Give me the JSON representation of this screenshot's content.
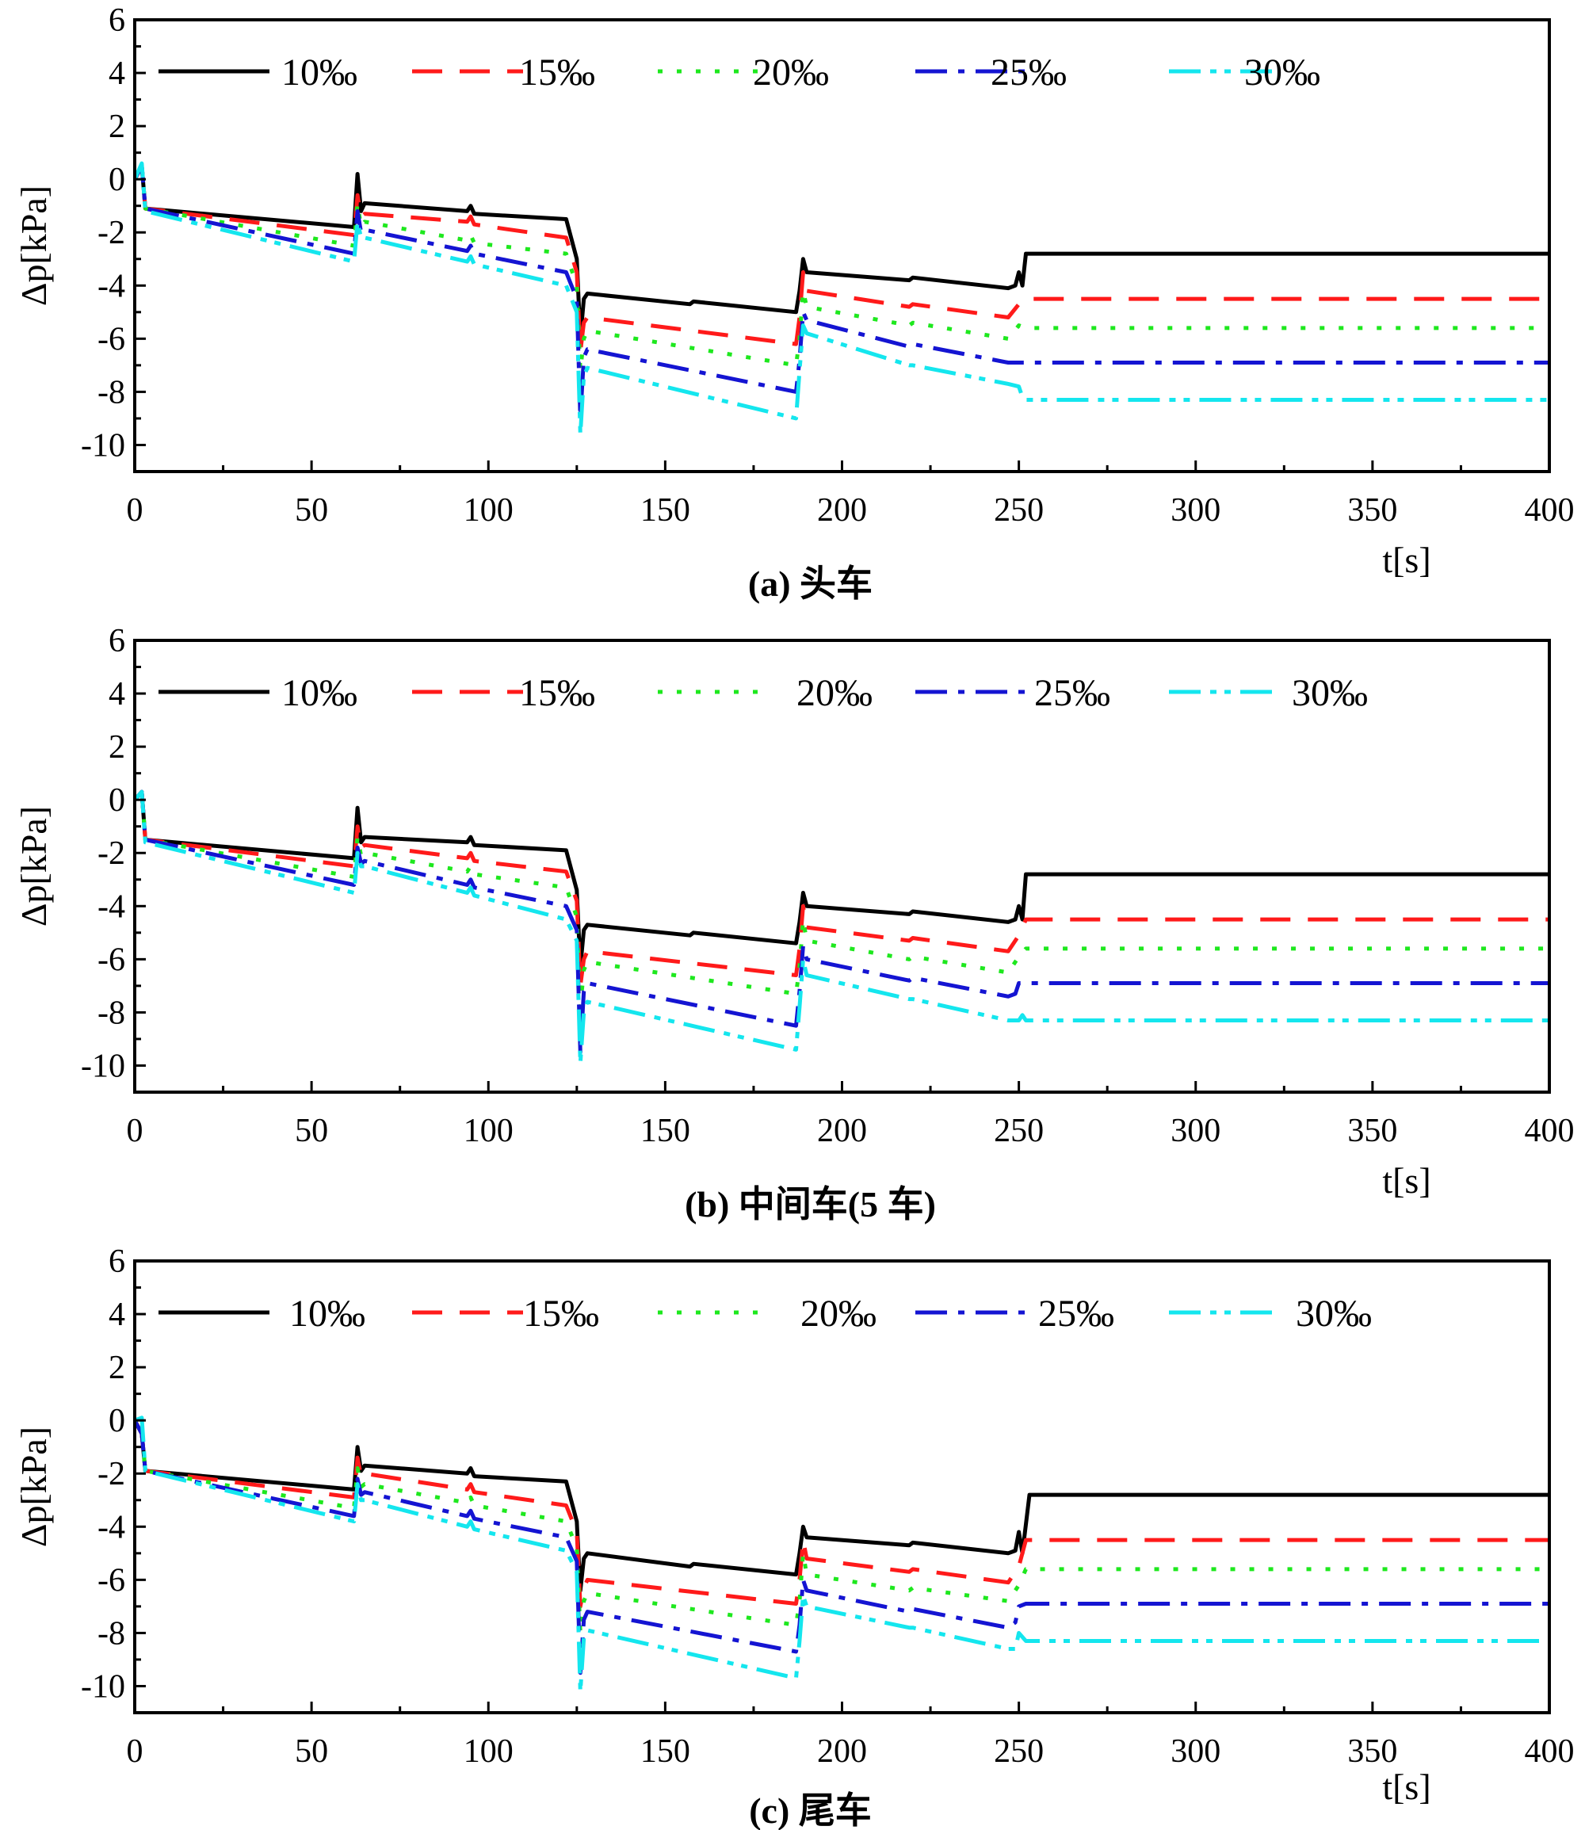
{
  "figure": {
    "captions": [
      "(a)  头车",
      "(b)  中间车(5 车)",
      "(c)  尾车"
    ]
  },
  "colors": {
    "s10": "#000000",
    "s15": "#ff1a1a",
    "s20": "#1ee81e",
    "s25": "#1414d2",
    "s30": "#14e6ee"
  },
  "chart_data": [
    {
      "type": "line",
      "title": "(a)  头车",
      "xlabel": "t[s]",
      "ylabel": "Δp[kPa]",
      "xlim": [
        0,
        400
      ],
      "ylim": [
        -11,
        6
      ],
      "xticks": [
        0,
        50,
        100,
        150,
        200,
        250,
        300,
        350,
        400
      ],
      "yticks": [
        6,
        4,
        2,
        0,
        -2,
        -4,
        -6,
        -8,
        -10
      ],
      "legend": [
        "10‰",
        "15‰",
        "20‰",
        "25‰",
        "30‰"
      ],
      "series": [
        {
          "name": "10‰",
          "x": [
            0,
            2,
            3,
            62,
            63,
            64,
            65,
            94,
            95,
            96,
            122,
            125,
            126,
            127,
            128,
            157,
            158,
            187,
            188,
            189,
            190,
            219,
            220,
            247,
            249,
            250,
            251,
            252,
            400
          ],
          "y": [
            0,
            0.5,
            -1.1,
            -1.8,
            0.2,
            -1.2,
            -0.9,
            -1.2,
            -1.0,
            -1.3,
            -1.5,
            -3.0,
            -6.0,
            -4.5,
            -4.3,
            -4.7,
            -4.6,
            -5.0,
            -4.2,
            -3.0,
            -3.5,
            -3.8,
            -3.7,
            -4.1,
            -4.0,
            -3.5,
            -4.0,
            -2.8,
            -2.8
          ]
        },
        {
          "name": "15‰",
          "x": [
            0,
            2,
            3,
            62,
            63,
            64,
            65,
            94,
            95,
            96,
            122,
            125,
            126,
            127,
            128,
            187,
            188,
            189,
            190,
            219,
            220,
            247,
            250,
            252,
            400
          ],
          "y": [
            0,
            0.5,
            -1.1,
            -2.1,
            -0.6,
            -1.4,
            -1.3,
            -1.6,
            -1.4,
            -1.7,
            -2.2,
            -3.5,
            -6.5,
            -5.4,
            -5.2,
            -6.2,
            -5.2,
            -3.5,
            -4.2,
            -4.8,
            -4.7,
            -5.2,
            -4.7,
            -4.5,
            -4.5
          ]
        },
        {
          "name": "20‰",
          "x": [
            0,
            2,
            3,
            62,
            63,
            64,
            65,
            94,
            95,
            96,
            122,
            125,
            126,
            127,
            128,
            187,
            188,
            189,
            190,
            219,
            220,
            247,
            250,
            252,
            400
          ],
          "y": [
            0,
            0.5,
            -1.1,
            -2.5,
            -0.9,
            -1.8,
            -1.6,
            -2.3,
            -2.1,
            -2.4,
            -2.8,
            -4.0,
            -7.2,
            -6.0,
            -5.7,
            -7.0,
            -6.0,
            -4.2,
            -4.8,
            -5.5,
            -5.4,
            -6.0,
            -5.5,
            -5.6,
            -5.6
          ]
        },
        {
          "name": "25‰",
          "x": [
            0,
            2,
            3,
            62,
            63,
            64,
            65,
            94,
            95,
            96,
            122,
            125,
            126,
            127,
            128,
            187,
            188,
            189,
            190,
            219,
            220,
            247,
            250,
            252,
            400
          ],
          "y": [
            0,
            0.5,
            -1.1,
            -2.8,
            -1.2,
            -2.0,
            -1.9,
            -2.7,
            -2.5,
            -2.8,
            -3.5,
            -4.5,
            -9.0,
            -6.7,
            -6.4,
            -8.0,
            -6.8,
            -5.0,
            -5.3,
            -6.3,
            -6.2,
            -6.9,
            -6.9,
            -6.9,
            -6.9
          ]
        },
        {
          "name": "30‰",
          "x": [
            0,
            2,
            3,
            62,
            63,
            64,
            65,
            94,
            95,
            96,
            122,
            125,
            126,
            127,
            128,
            187,
            188,
            189,
            190,
            219,
            220,
            247,
            250,
            251,
            252,
            400
          ],
          "y": [
            0,
            0.6,
            -1.2,
            -3.1,
            -1.6,
            -2.2,
            -2.2,
            -3.1,
            -2.9,
            -3.2,
            -4.0,
            -5.0,
            -9.6,
            -7.4,
            -7.1,
            -9.0,
            -7.2,
            -5.5,
            -5.8,
            -7.0,
            -7.0,
            -7.7,
            -7.8,
            -8.2,
            -8.3,
            -8.3
          ]
        }
      ]
    },
    {
      "type": "line",
      "title": "(b)  中间车(5 车)",
      "xlabel": "t[s]",
      "ylabel": "Δp[kPa]",
      "xlim": [
        0,
        400
      ],
      "ylim": [
        -11,
        6
      ],
      "xticks": [
        0,
        50,
        100,
        150,
        200,
        250,
        300,
        350,
        400
      ],
      "yticks": [
        6,
        4,
        2,
        0,
        -2,
        -4,
        -6,
        -8,
        -10
      ],
      "legend": [
        "10‰",
        "15‰",
        "20‰",
        "25‰",
        "30‰"
      ],
      "series": [
        {
          "name": "10‰",
          "x": [
            0,
            2,
            3,
            62,
            63,
            64,
            65,
            94,
            95,
            96,
            122,
            125,
            126,
            127,
            128,
            157,
            158,
            187,
            188,
            189,
            190,
            219,
            220,
            247,
            249,
            250,
            251,
            252,
            400
          ],
          "y": [
            0,
            0.3,
            -1.5,
            -2.2,
            -0.3,
            -1.6,
            -1.4,
            -1.6,
            -1.4,
            -1.7,
            -1.9,
            -3.4,
            -6.3,
            -4.9,
            -4.7,
            -5.1,
            -5.0,
            -5.4,
            -4.6,
            -3.5,
            -4.0,
            -4.3,
            -4.2,
            -4.6,
            -4.5,
            -4.0,
            -4.5,
            -2.8,
            -2.8
          ]
        },
        {
          "name": "15‰",
          "x": [
            0,
            2,
            3,
            62,
            63,
            64,
            65,
            94,
            95,
            96,
            122,
            125,
            126,
            127,
            128,
            187,
            188,
            189,
            190,
            219,
            220,
            247,
            250,
            252,
            400
          ],
          "y": [
            0,
            0.3,
            -1.5,
            -2.5,
            -1.0,
            -1.8,
            -1.7,
            -2.2,
            -2.0,
            -2.3,
            -2.7,
            -3.8,
            -7.0,
            -6.0,
            -5.7,
            -6.6,
            -5.6,
            -4.0,
            -4.8,
            -5.3,
            -5.2,
            -5.7,
            -5.1,
            -4.5,
            -4.5
          ]
        },
        {
          "name": "20‰",
          "x": [
            0,
            2,
            3,
            62,
            63,
            64,
            65,
            94,
            95,
            96,
            122,
            125,
            126,
            127,
            128,
            187,
            188,
            189,
            190,
            219,
            220,
            247,
            250,
            252,
            400
          ],
          "y": [
            0,
            0.3,
            -1.5,
            -2.9,
            -1.4,
            -2.1,
            -2.0,
            -2.7,
            -2.5,
            -2.8,
            -3.3,
            -4.4,
            -7.8,
            -6.4,
            -6.1,
            -7.3,
            -6.3,
            -4.5,
            -5.3,
            -6.0,
            -5.9,
            -6.5,
            -5.9,
            -5.6,
            -5.6
          ]
        },
        {
          "name": "25‰",
          "x": [
            0,
            2,
            3,
            62,
            63,
            64,
            65,
            94,
            95,
            96,
            122,
            125,
            126,
            127,
            128,
            187,
            188,
            189,
            190,
            219,
            220,
            247,
            249,
            250,
            252,
            400
          ],
          "y": [
            0,
            0.3,
            -1.5,
            -3.2,
            -1.8,
            -2.4,
            -2.3,
            -3.2,
            -3.0,
            -3.3,
            -4.0,
            -4.9,
            -9.5,
            -7.2,
            -6.9,
            -8.5,
            -7.2,
            -5.5,
            -6.0,
            -6.8,
            -6.7,
            -7.4,
            -7.3,
            -6.9,
            -6.9,
            -6.9
          ]
        },
        {
          "name": "30‰",
          "x": [
            0,
            2,
            3,
            62,
            63,
            64,
            65,
            94,
            95,
            96,
            122,
            125,
            126,
            127,
            128,
            187,
            188,
            189,
            190,
            219,
            220,
            247,
            250,
            251,
            252,
            400
          ],
          "y": [
            0,
            0.3,
            -1.6,
            -3.5,
            -2.0,
            -2.5,
            -2.5,
            -3.5,
            -3.3,
            -3.6,
            -4.5,
            -5.3,
            -9.9,
            -8.0,
            -7.6,
            -9.4,
            -7.8,
            -6.0,
            -6.6,
            -7.5,
            -7.5,
            -8.3,
            -8.3,
            -8.1,
            -8.3,
            -8.3
          ]
        }
      ]
    },
    {
      "type": "line",
      "title": "(c)  尾车",
      "xlabel": "t[s]",
      "ylabel": "Δp[kPa]",
      "xlim": [
        0,
        400
      ],
      "ylim": [
        -11,
        6
      ],
      "xticks": [
        0,
        50,
        100,
        150,
        200,
        250,
        300,
        350,
        400
      ],
      "yticks": [
        6,
        4,
        2,
        0,
        -2,
        -4,
        -6,
        -8,
        -10
      ],
      "legend": [
        "10‰",
        "15‰",
        "20‰",
        "25‰",
        "30‰"
      ],
      "series": [
        {
          "name": "10‰",
          "x": [
            0,
            2,
            3,
            62,
            63,
            64,
            65,
            94,
            95,
            96,
            122,
            125,
            126,
            127,
            128,
            157,
            158,
            187,
            188,
            189,
            190,
            219,
            220,
            247,
            249,
            250,
            251,
            253,
            400
          ],
          "y": [
            0,
            -0.5,
            -1.9,
            -2.6,
            -1.0,
            -1.9,
            -1.7,
            -2.0,
            -1.8,
            -2.1,
            -2.3,
            -3.8,
            -6.4,
            -5.2,
            -5.0,
            -5.5,
            -5.4,
            -5.8,
            -5.0,
            -4.0,
            -4.4,
            -4.7,
            -4.6,
            -5.0,
            -4.9,
            -4.2,
            -5.0,
            -2.8,
            -2.8
          ]
        },
        {
          "name": "15‰",
          "x": [
            0,
            2,
            3,
            62,
            63,
            64,
            65,
            94,
            95,
            96,
            122,
            125,
            126,
            127,
            128,
            187,
            188,
            189,
            190,
            219,
            220,
            247,
            250,
            252,
            400
          ],
          "y": [
            0,
            -0.5,
            -1.9,
            -2.9,
            -1.4,
            -2.1,
            -2.0,
            -2.6,
            -2.4,
            -2.7,
            -3.2,
            -4.2,
            -7.0,
            -6.3,
            -6.0,
            -6.9,
            -6.0,
            -4.5,
            -5.2,
            -5.7,
            -5.6,
            -6.1,
            -5.5,
            -4.5,
            -4.5
          ]
        },
        {
          "name": "20‰",
          "x": [
            0,
            2,
            3,
            62,
            63,
            64,
            65,
            94,
            95,
            96,
            122,
            125,
            126,
            127,
            128,
            187,
            188,
            189,
            190,
            219,
            220,
            247,
            250,
            252,
            400
          ],
          "y": [
            0,
            -0.5,
            -1.9,
            -3.3,
            -1.8,
            -2.5,
            -2.4,
            -3.1,
            -2.9,
            -3.2,
            -3.8,
            -4.8,
            -8.0,
            -6.8,
            -6.5,
            -7.7,
            -6.8,
            -5.0,
            -5.8,
            -6.4,
            -6.3,
            -6.8,
            -6.2,
            -5.6,
            -5.6
          ]
        },
        {
          "name": "25‰",
          "x": [
            0,
            2,
            3,
            62,
            63,
            64,
            65,
            94,
            95,
            96,
            122,
            125,
            126,
            127,
            128,
            187,
            188,
            189,
            190,
            219,
            220,
            247,
            249,
            250,
            252,
            400
          ],
          "y": [
            0,
            -0.5,
            -1.9,
            -3.6,
            -2.2,
            -2.8,
            -2.7,
            -3.6,
            -3.4,
            -3.7,
            -4.4,
            -5.3,
            -9.5,
            -7.5,
            -7.2,
            -8.7,
            -7.7,
            -6.0,
            -6.4,
            -7.2,
            -7.1,
            -7.8,
            -7.6,
            -7.0,
            -6.9,
            -6.9
          ]
        },
        {
          "name": "30‰",
          "x": [
            0,
            2,
            3,
            62,
            63,
            64,
            65,
            94,
            95,
            96,
            122,
            125,
            126,
            127,
            128,
            187,
            188,
            189,
            190,
            219,
            220,
            247,
            249,
            250,
            252,
            400
          ],
          "y": [
            0,
            0.1,
            -1.9,
            -3.8,
            -2.4,
            -3.0,
            -3.0,
            -4.0,
            -3.8,
            -4.1,
            -4.9,
            -5.7,
            -10.2,
            -8.2,
            -7.9,
            -9.7,
            -8.3,
            -6.6,
            -7.0,
            -7.8,
            -7.8,
            -8.6,
            -8.6,
            -8.0,
            -8.3,
            -8.3
          ]
        }
      ]
    }
  ]
}
